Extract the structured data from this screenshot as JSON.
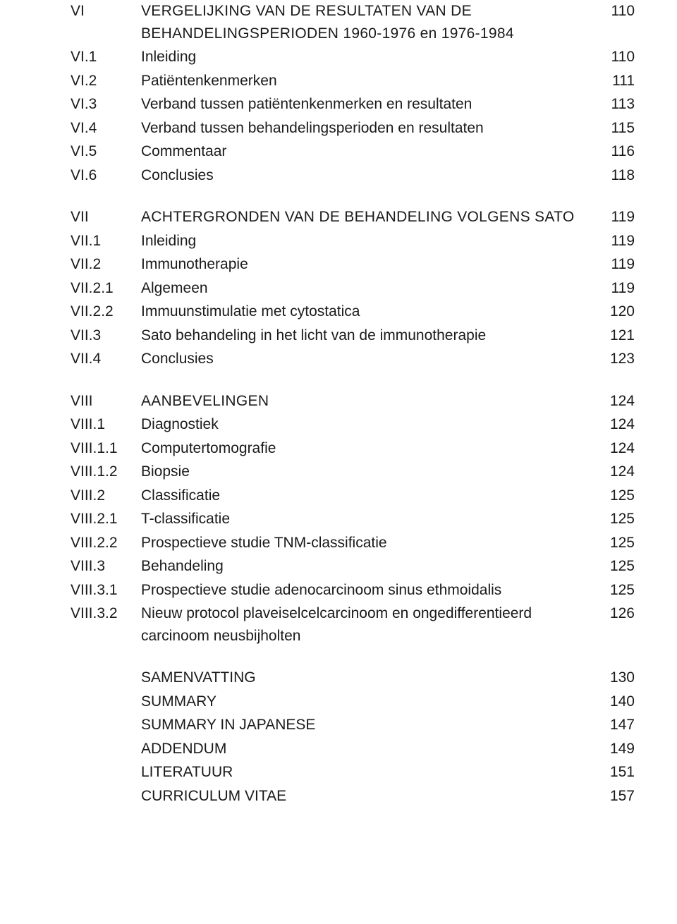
{
  "entries": [
    {
      "num": "VI",
      "title": "VERGELIJKING VAN DE RESULTATEN VAN DE BEHANDELINGSPERIODEN 1960-1976 en 1976-1984",
      "page": "110",
      "chapter": true
    },
    {
      "num": "VI.1",
      "title": "Inleiding",
      "page": "110"
    },
    {
      "num": "VI.2",
      "title": "Patiëntenkenmerken",
      "page": "111"
    },
    {
      "num": "VI.3",
      "title": "Verband tussen patiëntenkenmerken en resultaten",
      "page": "113"
    },
    {
      "num": "VI.4",
      "title": "Verband tussen behandelingsperioden en resultaten",
      "page": "115"
    },
    {
      "num": "VI.5",
      "title": "Commentaar",
      "page": "116"
    },
    {
      "num": "VI.6",
      "title": "Conclusies",
      "page": "118"
    },
    {
      "gap": true
    },
    {
      "num": "VII",
      "title": "ACHTERGRONDEN VAN DE BEHANDELING VOLGENS SATO",
      "page": "119",
      "chapter": true
    },
    {
      "num": "VII.1",
      "title": "Inleiding",
      "page": "119"
    },
    {
      "num": "VII.2",
      "title": "Immunotherapie",
      "page": "119"
    },
    {
      "num": "VII.2.1",
      "title": "Algemeen",
      "page": "119"
    },
    {
      "num": "VII.2.2",
      "title": "Immuunstimulatie met cytostatica",
      "page": "120"
    },
    {
      "num": "VII.3",
      "title": "Sato behandeling in het licht van de immunotherapie",
      "page": "121"
    },
    {
      "num": "VII.4",
      "title": "Conclusies",
      "page": "123"
    },
    {
      "gap": true
    },
    {
      "num": "VIII",
      "title": "AANBEVELINGEN",
      "page": "124",
      "chapter": true
    },
    {
      "num": "VIII.1",
      "title": "Diagnostiek",
      "page": "124"
    },
    {
      "num": "VIII.1.1",
      "title": "Computertomografie",
      "page": "124"
    },
    {
      "num": "VIII.1.2",
      "title": "Biopsie",
      "page": "124"
    },
    {
      "num": "VIII.2",
      "title": "Classificatie",
      "page": "125"
    },
    {
      "num": "VIII.2.1",
      "title": "T-classificatie",
      "page": "125"
    },
    {
      "num": "VIII.2.2",
      "title": "Prospectieve studie TNM-classificatie",
      "page": "125"
    },
    {
      "num": "VIII.3",
      "title": "Behandeling",
      "page": "125"
    },
    {
      "num": "VIII.3.1",
      "title": "Prospectieve studie adenocarcinoom sinus ethmoidalis",
      "page": "125"
    },
    {
      "num": "VIII.3.2",
      "title": "Nieuw protocol plaveiselcelcarcinoom en ongedifferentieerd carcinoom neusbijholten",
      "page": "126"
    },
    {
      "gap": true
    },
    {
      "num": "",
      "title": "SAMENVATTING",
      "page": "130"
    },
    {
      "num": "",
      "title": "SUMMARY",
      "page": "140"
    },
    {
      "num": "",
      "title": "SUMMARY IN JAPANESE",
      "page": "147"
    },
    {
      "num": "",
      "title": "ADDENDUM",
      "page": "149"
    },
    {
      "num": "",
      "title": "LITERATUUR",
      "page": "151"
    },
    {
      "num": "",
      "title": "CURRICULUM VITAE",
      "page": "157"
    }
  ]
}
